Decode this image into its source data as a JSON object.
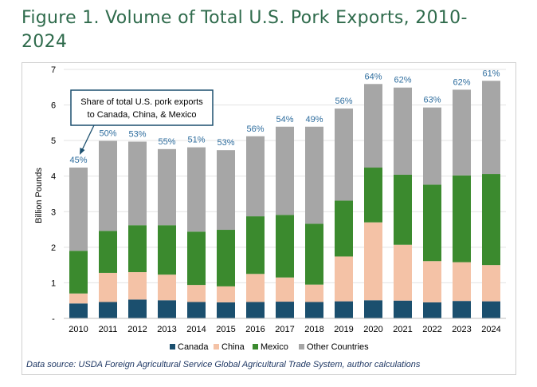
{
  "figure": {
    "title_line1": "Figure 1. Volume of Total U.S. Pork Exports, 2010-",
    "title_line2": "2024",
    "source": "Data source: USDA Foreign Agricultural Service Global Agricultural Trade System, author calculations"
  },
  "chart_data": {
    "type": "bar",
    "stacked": true,
    "title": "Volume of Total U.S. Pork Exports, 2010-2024",
    "xlabel": "",
    "ylabel": "Billion Pounds",
    "ylim": [
      0,
      7
    ],
    "yticks": [
      "-",
      "1",
      "2",
      "3",
      "4",
      "5",
      "6",
      "7"
    ],
    "categories": [
      "2010",
      "2011",
      "2012",
      "2013",
      "2014",
      "2015",
      "2016",
      "2017",
      "2018",
      "2019",
      "2020",
      "2021",
      "2022",
      "2023",
      "2024"
    ],
    "series": [
      {
        "name": "Canada",
        "color": "#1b4f6e",
        "values": [
          0.42,
          0.46,
          0.53,
          0.51,
          0.46,
          0.45,
          0.46,
          0.47,
          0.46,
          0.48,
          0.51,
          0.5,
          0.45,
          0.49,
          0.48
        ]
      },
      {
        "name": "China",
        "color": "#f4c2a6",
        "values": [
          0.28,
          0.82,
          0.77,
          0.72,
          0.48,
          0.45,
          0.79,
          0.68,
          0.49,
          1.26,
          2.19,
          1.57,
          1.16,
          1.09,
          1.02
        ]
      },
      {
        "name": "Mexico",
        "color": "#3b8a2e",
        "values": [
          1.2,
          1.18,
          1.32,
          1.39,
          1.5,
          1.59,
          1.62,
          1.76,
          1.71,
          1.57,
          1.54,
          1.97,
          2.15,
          2.44,
          2.56
        ]
      },
      {
        "name": "Other Countries",
        "color": "#a6a6a6",
        "values": [
          2.34,
          2.53,
          2.35,
          2.14,
          2.37,
          2.24,
          2.25,
          2.48,
          2.73,
          2.59,
          2.35,
          2.45,
          2.17,
          2.41,
          2.62
        ]
      }
    ],
    "share_labels": [
      "45%",
      "50%",
      "53%",
      "55%",
      "51%",
      "53%",
      "56%",
      "54%",
      "49%",
      "56%",
      "64%",
      "62%",
      "63%",
      "62%",
      "61%"
    ],
    "annotation": {
      "line1": "Share of total U.S. pork exports",
      "line2": "to Canada, China, & Mexico"
    },
    "legend": {
      "placement": "bottom",
      "entries": [
        "Canada",
        "China",
        "Mexico",
        "Other Countries"
      ]
    },
    "colors": {
      "share_label": "#2e6d9e",
      "title": "#2f6b4c",
      "source": "#1f3864",
      "annotation_border": "#1b4f6e"
    }
  }
}
